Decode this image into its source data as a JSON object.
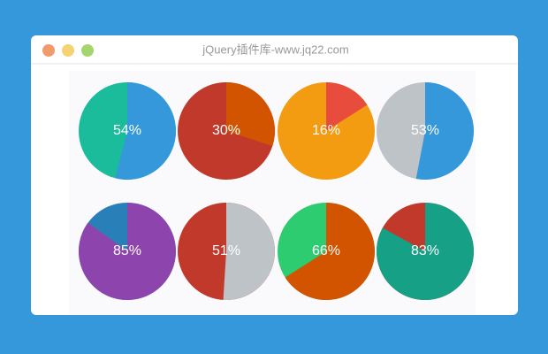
{
  "window": {
    "title": "jQuery插件库-www.jq22.com"
  },
  "chart_data": [
    {
      "type": "pie",
      "values": [
        54
      ],
      "value_labels": [
        "54%"
      ],
      "color": "#3498db",
      "track_color": "#1abc9c"
    },
    {
      "type": "pie",
      "values": [
        30
      ],
      "value_labels": [
        "30%"
      ],
      "color": "#d35400",
      "track_color": "#c0392b"
    },
    {
      "type": "pie",
      "values": [
        16
      ],
      "value_labels": [
        "16%"
      ],
      "color": "#e74c3c",
      "track_color": "#f39c12"
    },
    {
      "type": "pie",
      "values": [
        53
      ],
      "value_labels": [
        "53%"
      ],
      "color": "#3498db",
      "track_color": "#bdc3c7"
    },
    {
      "type": "pie",
      "values": [
        85
      ],
      "value_labels": [
        "85%"
      ],
      "color": "#8e44ad",
      "track_color": "#2980b9"
    },
    {
      "type": "pie",
      "values": [
        51
      ],
      "value_labels": [
        "51%"
      ],
      "color": "#bdc3c7",
      "track_color": "#c0392b"
    },
    {
      "type": "pie",
      "values": [
        66
      ],
      "value_labels": [
        "66%"
      ],
      "color": "#d35400",
      "track_color": "#2ecc71"
    },
    {
      "type": "pie",
      "values": [
        83
      ],
      "value_labels": [
        "83%"
      ],
      "color": "#16a085",
      "track_color": "#c0392b"
    }
  ]
}
